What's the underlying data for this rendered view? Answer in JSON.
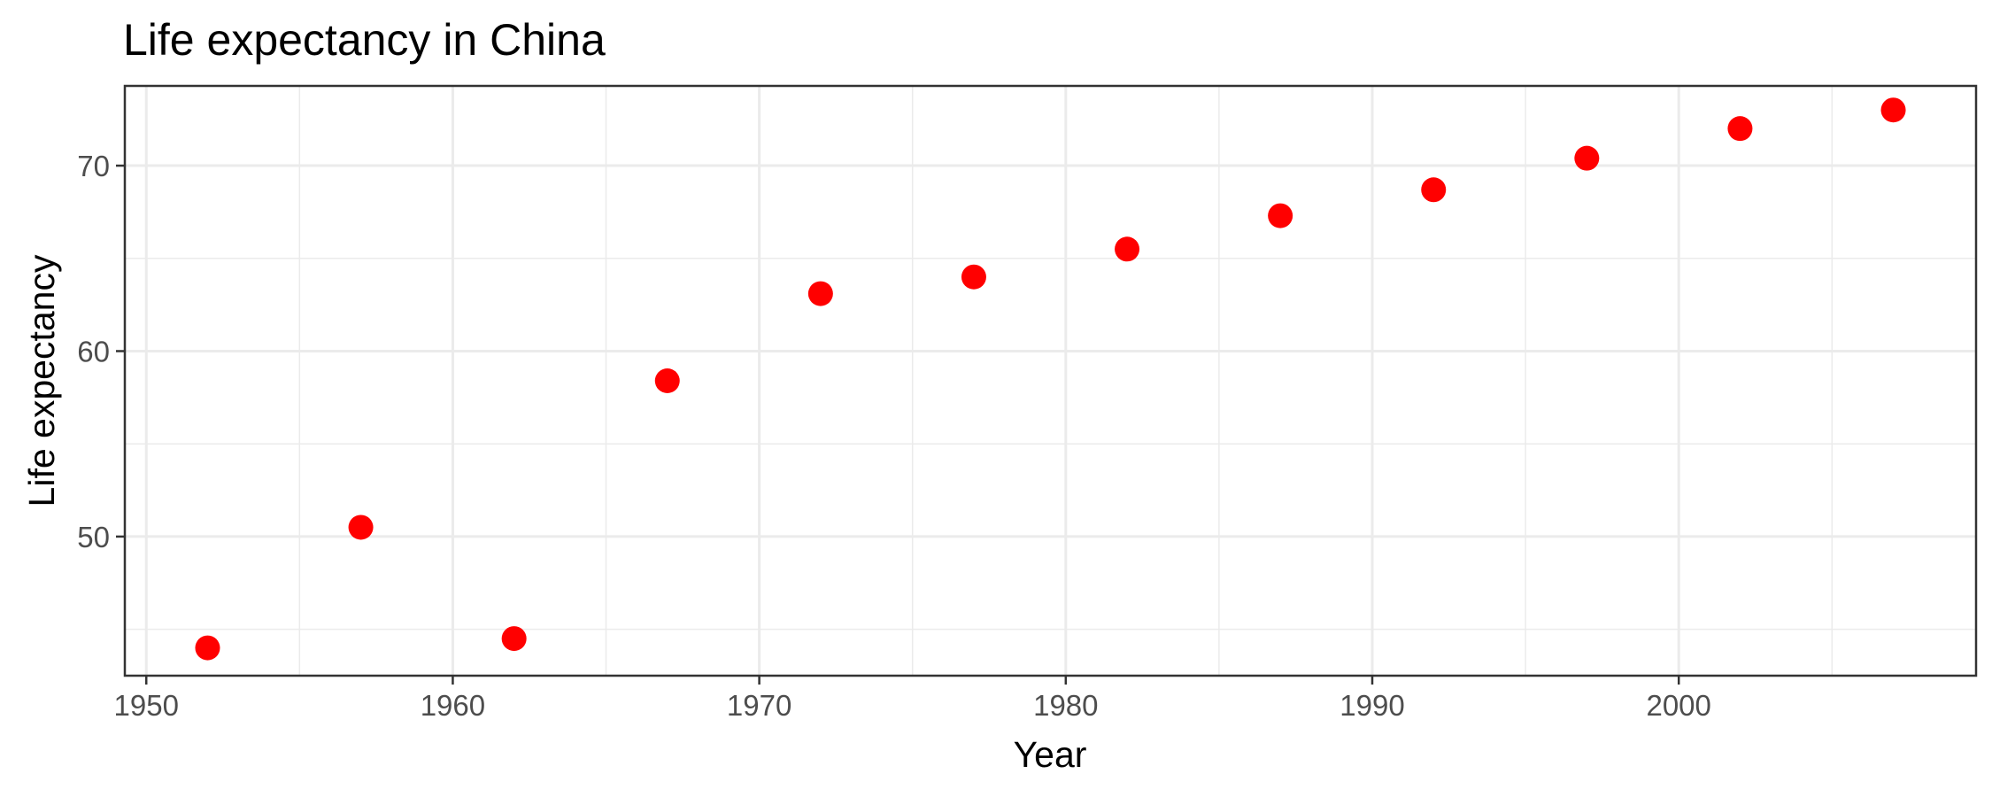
{
  "chart_data": {
    "type": "scatter",
    "title": "Life expectancy in China",
    "xlabel": "Year",
    "ylabel": "Life expectancy",
    "x": [
      1952,
      1957,
      1962,
      1967,
      1972,
      1977,
      1982,
      1987,
      1992,
      1997,
      2002,
      2007
    ],
    "y": [
      44.0,
      50.5,
      44.5,
      58.4,
      63.1,
      64.0,
      65.5,
      67.3,
      68.7,
      70.4,
      72.0,
      73.0
    ],
    "xlim": [
      1949.3,
      2009.7
    ],
    "ylim": [
      42.5,
      74.3
    ],
    "x_ticks": [
      1950,
      1960,
      1970,
      1980,
      1990,
      2000
    ],
    "x_minor_ticks": [
      1955,
      1965,
      1975,
      1985,
      1995,
      2005
    ],
    "y_ticks": [
      50,
      60,
      70
    ],
    "y_minor_ticks": [
      45,
      55,
      65
    ],
    "point_color": "#ff0000",
    "grid": true,
    "legend": "none"
  }
}
